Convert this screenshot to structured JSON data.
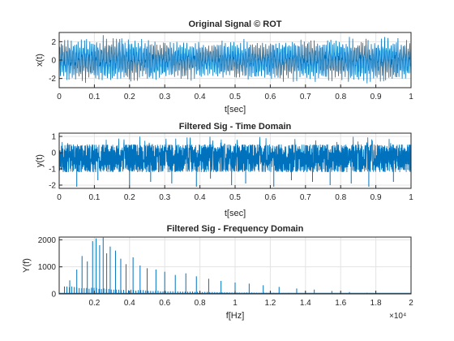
{
  "chart_data": [
    {
      "type": "line",
      "title": "Original Signal © ROT",
      "xlabel": "t[sec]",
      "ylabel": "x(t)",
      "xlim": [
        0,
        1
      ],
      "ylim": [
        -3,
        3
      ],
      "xticks": [
        "0",
        "0.1",
        "0.2",
        "0.3",
        "0.4",
        "0.5",
        "0.6",
        "0.7",
        "0.8",
        "0.9",
        "1"
      ],
      "yticks": [
        "-2",
        "0",
        "2"
      ],
      "grid": true,
      "series": [
        {
          "description": "dense oscillation, amplitude envelope about 2 to 2.6",
          "envelope_t": [
            0,
            0.1,
            0.2,
            0.3,
            0.4,
            0.5,
            0.6,
            0.7,
            0.8,
            0.9,
            1.0
          ],
          "envelope_max": [
            2.4,
            2.6,
            2.6,
            2.3,
            2.1,
            2.2,
            2.3,
            2.5,
            2.6,
            2.5,
            2.4
          ],
          "color": "#0072bd"
        }
      ]
    },
    {
      "type": "line",
      "title": "Filtered Sig - Time Domain",
      "xlabel": "t[sec]",
      "ylabel": "y(t)",
      "xlim": [
        0,
        1
      ],
      "ylim": [
        -2.2,
        1.2
      ],
      "xticks": [
        "0",
        "0.1",
        "0.2",
        "0.3",
        "0.4",
        "0.5",
        "0.6",
        "0.7",
        "0.8",
        "0.9",
        "1"
      ],
      "yticks": [
        "-2",
        "-1",
        "0",
        "1"
      ],
      "grid": true,
      "series": [
        {
          "description": "dense band between about -1.2 and 0.5 with occasional spikes",
          "band": [
            -1.2,
            0.5
          ],
          "spikes_t": [
            0.05,
            0.11,
            0.2,
            0.26,
            0.32,
            0.39,
            0.43,
            0.49,
            0.53,
            0.61,
            0.66,
            0.72,
            0.77,
            0.83,
            0.88,
            0.95
          ],
          "spikes_y": [
            -2.1,
            -1.7,
            -2.0,
            -1.8,
            -1.9,
            -2.1,
            -1.6,
            -2.0,
            -1.9,
            -2.1,
            -1.7,
            -1.8,
            -2.0,
            -1.9,
            -2.1,
            -1.8
          ],
          "color": "#0072bd"
        }
      ]
    },
    {
      "type": "line",
      "title": "Filtered Sig - Frequency Domain",
      "xlabel": "f[Hz]",
      "ylabel": "Y(f)",
      "xlim": [
        0,
        20000
      ],
      "ylim": [
        0,
        2100
      ],
      "xticks": [
        "0.2",
        "0.4",
        "0.6",
        "0.8",
        "1",
        "1.2",
        "1.4",
        "1.6",
        "1.8",
        "2"
      ],
      "x_multiplier": "×10⁴",
      "yticks": [
        "0",
        "1000",
        "2000"
      ],
      "grid": true,
      "series": [
        {
          "description": "magnitude spectrum: tall peaks 1000 to 2100 between 1000 and 4000 Hz, decaying toward zero by about 18000 Hz",
          "peaks_f": [
            600,
            1000,
            1300,
            1600,
            1900,
            2100,
            2300,
            2500,
            2700,
            2900,
            3200,
            3500,
            3800,
            4200,
            4600,
            5000,
            5500,
            6000,
            6600,
            7200,
            7800,
            8500,
            9200,
            10000,
            10800,
            11600,
            12500,
            13500,
            14500,
            15500,
            16500,
            17500
          ],
          "peaks_y": [
            500,
            900,
            1400,
            1200,
            1950,
            2050,
            1800,
            2080,
            1500,
            1750,
            1600,
            1300,
            1100,
            1350,
            1050,
            950,
            900,
            820,
            700,
            760,
            650,
            560,
            480,
            420,
            380,
            320,
            260,
            200,
            160,
            110,
            70,
            40
          ],
          "color": "#0072bd"
        }
      ]
    }
  ]
}
